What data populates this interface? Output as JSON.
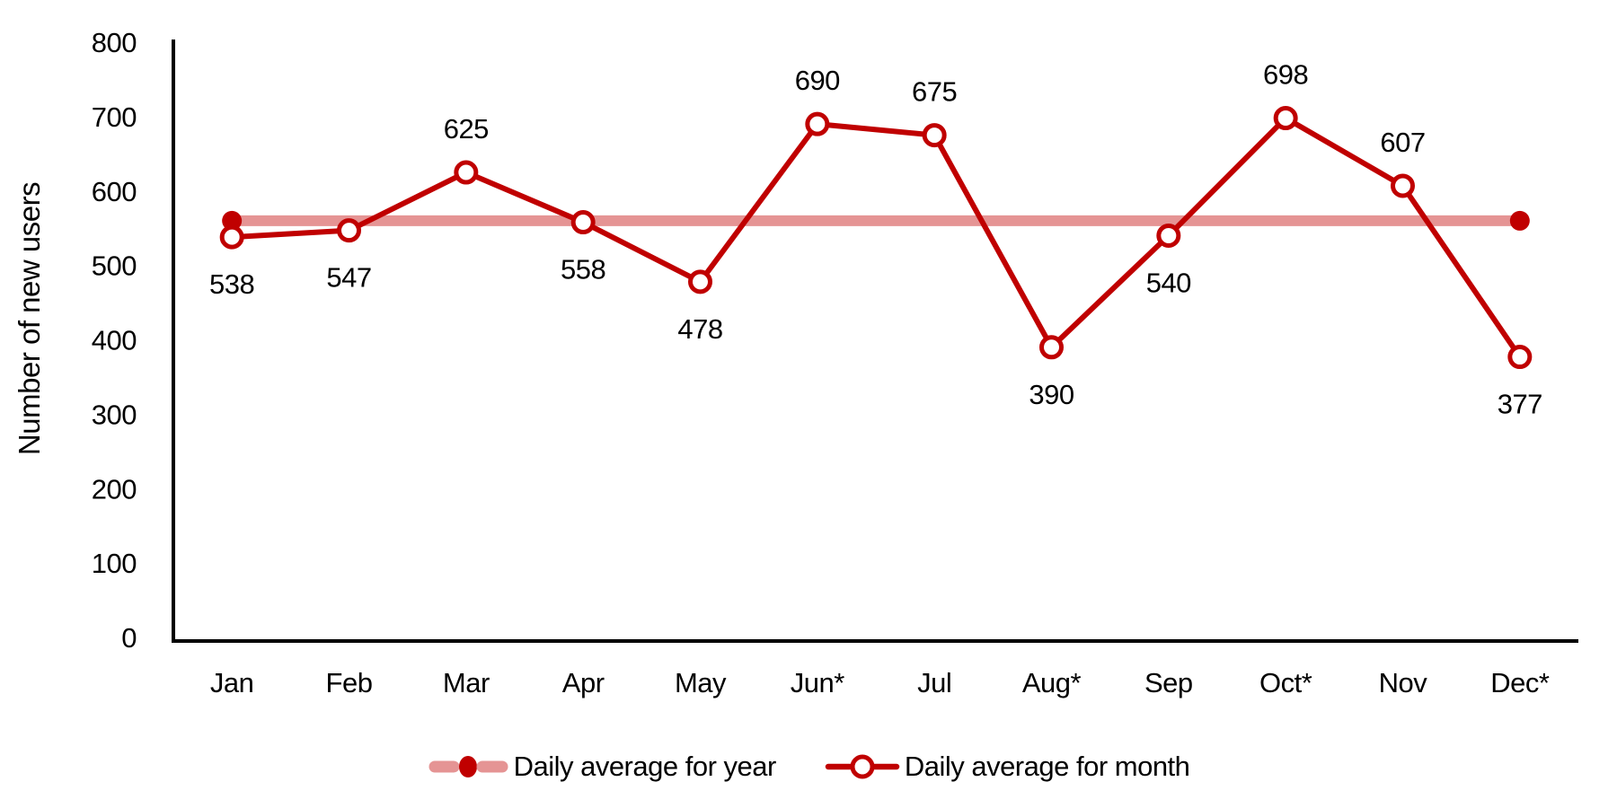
{
  "chart_data": {
    "type": "line",
    "title": "",
    "ylabel": "Number of new users",
    "xlabel": "",
    "ylim": [
      0,
      800
    ],
    "ytick_step": 100,
    "ytick_labels": [
      "0",
      "100",
      "200",
      "300",
      "400",
      "500",
      "600",
      "700",
      "800"
    ],
    "categories": [
      "Jan",
      "Feb",
      "Mar",
      "Apr",
      "May",
      "Jun*",
      "Jul",
      "Aug*",
      "Sep",
      "Oct*",
      "Nov",
      "Dec*"
    ],
    "series": [
      {
        "name": "Daily average for year",
        "kind": "reference-line",
        "value": 560,
        "color": "#e59494",
        "endpoint_marker": "filled-circle",
        "endpoint_color": "#c00000"
      },
      {
        "name": "Daily average for month",
        "kind": "line",
        "color": "#c00000",
        "marker": "open-circle",
        "values": [
          538,
          547,
          625,
          558,
          478,
          690,
          675,
          390,
          540,
          698,
          607,
          377
        ],
        "data_label_position": [
          "below",
          "below",
          "above",
          "below",
          "below",
          "above",
          "above",
          "below",
          "below",
          "above",
          "above",
          "below"
        ]
      }
    ],
    "legend_position": "bottom-center",
    "grid": false,
    "background": "#ffffff",
    "axis_color": "#000000",
    "text_color": "#000000"
  }
}
